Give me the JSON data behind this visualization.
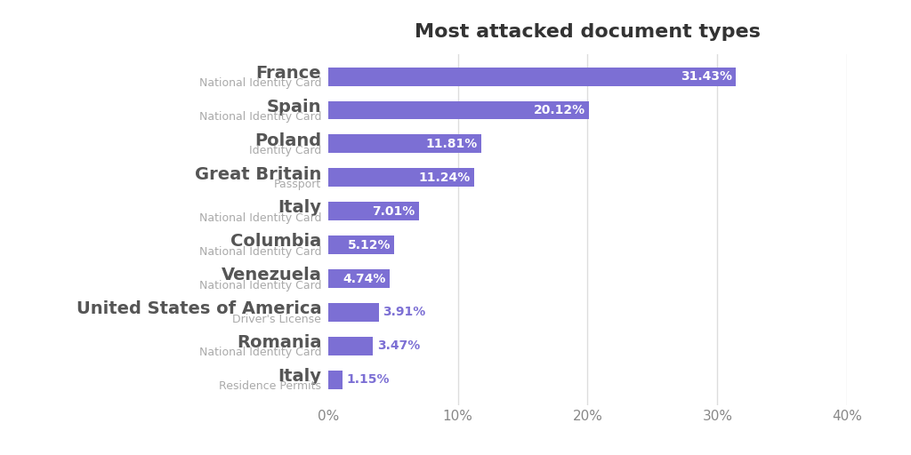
{
  "title": "Most attacked document types",
  "background_color": "#ffffff",
  "bar_color": "#7c6fd4",
  "label_text_color": "#555555",
  "sublabel_text_color": "#aaaaaa",
  "value_text_color_inside": "#ffffff",
  "value_text_color_outside": "#7c6fd4",
  "categories": [
    "France",
    "Spain",
    "Poland",
    "Great Britain",
    "Italy",
    "Columbia",
    "Venezuela",
    "United States of America",
    "Romania",
    "Italy"
  ],
  "subcategories": [
    "National Identity Card",
    "National Identity Card",
    "Identity Card",
    "Passport",
    "National Identity Card",
    "National Identity Card",
    "National Identity Card",
    "Driver's License",
    "National Identity Card",
    "Residence Permits"
  ],
  "values": [
    31.43,
    20.12,
    11.81,
    11.24,
    7.01,
    5.12,
    4.74,
    3.91,
    3.47,
    1.15
  ],
  "value_labels": [
    "31.43%",
    "20.12%",
    "11.81%",
    "11.24%",
    "7.01%",
    "5.12%",
    "4.74%",
    "3.91%",
    "3.47%",
    "1.15%"
  ],
  "xlim": [
    0,
    40
  ],
  "xticks": [
    0,
    10,
    20,
    30,
    40
  ],
  "xtick_labels": [
    "0%",
    "10%",
    "20%",
    "30%",
    "40%"
  ],
  "grid_color": "#dddddd",
  "title_fontsize": 16,
  "category_fontsize": 14,
  "subcategory_fontsize": 9,
  "value_fontsize": 10,
  "xtick_fontsize": 11
}
